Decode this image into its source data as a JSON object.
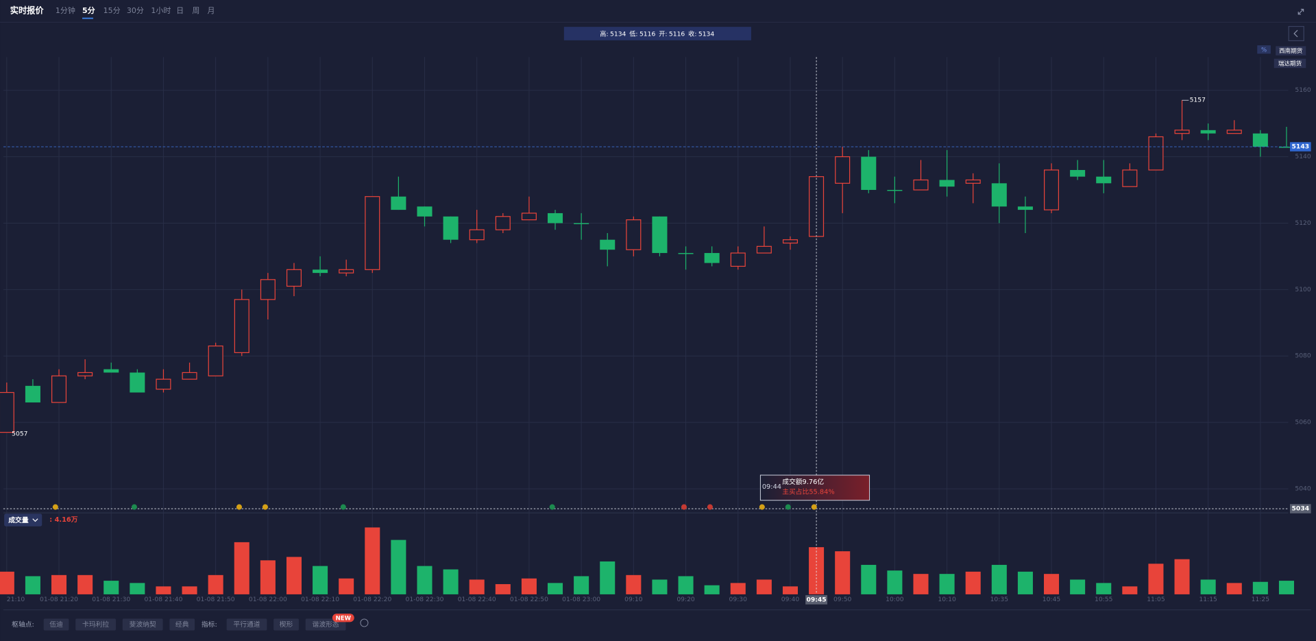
{
  "toolbar": {
    "title": "实时报价",
    "tabs": [
      "1分钟",
      "5分",
      "15分",
      "30分",
      "1小时",
      "日",
      "周",
      "月"
    ]
  },
  "info_labels": [
    "高:",
    "低:",
    "开:",
    "收:"
  ],
  "brokers": [
    "西南期货",
    "瑞达期货"
  ],
  "percent_button": "%",
  "volume_label": "成交量",
  "volume_readout": ": 4.16万",
  "tooltip": {
    "time": "09:44",
    "turnover": "成交额9.76亿",
    "buy_ratio": "主买占比55.84%"
  },
  "bottom_bar": {
    "pivot_label": "枢轴点:",
    "pivot_buttons": [
      "伍迪",
      "卡玛利拉",
      "斐波纳契",
      "经典"
    ],
    "indicator_label": "指标:",
    "indicator_buttons": [
      "平行通道",
      "楔形",
      "谐波形态"
    ],
    "badge": "NEW"
  },
  "chart_data": {
    "type": "candlestick",
    "categories": [
      "21:10",
      null,
      "01-08 21:20",
      null,
      "01-08 21:30",
      null,
      "01-08 21:40",
      null,
      "01-08 21:50",
      null,
      "01-08 22:00",
      null,
      "01-08 22:10",
      null,
      "01-08 22:20",
      null,
      "01-08 22:30",
      null,
      "01-08 22:40",
      null,
      "01-08 22:50",
      null,
      "01-08 23:00",
      null,
      "09:10",
      null,
      "09:20",
      null,
      "09:30",
      null,
      "09:40",
      "09:45",
      "09:50",
      null,
      "10:00",
      null,
      "10:10",
      null,
      "10:35",
      null,
      "10:45",
      null,
      "10:55",
      null,
      "11:05",
      null,
      "11:15",
      null,
      "11:25",
      null
    ],
    "open": [
      5057,
      5071,
      5066,
      5074,
      5076,
      5075,
      5070,
      5073,
      5074,
      5081,
      5097,
      5101,
      5106,
      5105,
      5106,
      5128,
      5125,
      5122,
      5115,
      5118,
      5121,
      5123,
      5120,
      5115,
      5112,
      5122,
      5111,
      5111,
      5107,
      5111,
      5114,
      5116,
      5132,
      5140,
      5130,
      5130,
      5133,
      5132,
      5132,
      5125,
      5124,
      5136,
      5134,
      5131,
      5136,
      5147,
      5148,
      5147,
      5147,
      5143
    ],
    "high": [
      5072,
      5073,
      5076,
      5079,
      5078,
      5076,
      5076,
      5078,
      5084,
      5100,
      5105,
      5108,
      5110,
      5109,
      5128,
      5134,
      5125,
      5122,
      5124,
      5123,
      5128,
      5124,
      5123,
      5117,
      5122,
      5122,
      5113,
      5113,
      5113,
      5119,
      5116,
      5134,
      5143,
      5142,
      5134,
      5139,
      5142,
      5135,
      5138,
      5128,
      5138,
      5139,
      5139,
      5138,
      5147,
      5157,
      5150,
      5151,
      5148,
      5149
    ],
    "low": [
      5057,
      5066,
      5066,
      5073,
      5075,
      5069,
      5069,
      5073,
      5074,
      5080,
      5091,
      5098,
      5104,
      5104,
      5105,
      5124,
      5119,
      5114,
      5114,
      5117,
      5121,
      5118,
      5115,
      5107,
      5110,
      5110,
      5106,
      5107,
      5106,
      5111,
      5112,
      5116,
      5123,
      5129,
      5126,
      5130,
      5128,
      5126,
      5120,
      5117,
      5123,
      5133,
      5129,
      5131,
      5136,
      5145,
      5145,
      5147,
      5140,
      5143
    ],
    "close": [
      5069,
      5066,
      5074,
      5075,
      5075,
      5069,
      5073,
      5075,
      5083,
      5097,
      5103,
      5106,
      5105,
      5106,
      5128,
      5124,
      5122,
      5115,
      5118,
      5122,
      5123,
      5120,
      5120,
      5112,
      5121,
      5111,
      5111,
      5108,
      5111,
      5113,
      5115,
      5134,
      5140,
      5130,
      5130,
      5133,
      5131,
      5133,
      5125,
      5124,
      5136,
      5134,
      5132,
      5136,
      5146,
      5148,
      5147,
      5148,
      5143,
      5143
    ],
    "volume": [
      2.0,
      1.6,
      1.7,
      1.7,
      1.2,
      1.0,
      0.7,
      0.7,
      1.7,
      4.6,
      3.0,
      3.3,
      2.5,
      1.4,
      5.9,
      4.8,
      2.5,
      2.2,
      1.3,
      0.9,
      1.4,
      1.0,
      1.6,
      2.9,
      1.7,
      1.3,
      1.6,
      0.8,
      1.0,
      1.3,
      0.7,
      4.16,
      3.8,
      2.6,
      2.1,
      1.8,
      1.8,
      2.0,
      2.6,
      2.0,
      1.8,
      1.3,
      1.0,
      0.7,
      2.7,
      3.1,
      1.3,
      1.0,
      1.1,
      1.2
    ],
    "up_color": "#e8443a",
    "down_color": "#1db36b",
    "ylim": [
      5033.5,
      5170
    ],
    "yticks": [
      5040,
      5060,
      5080,
      5100,
      5120,
      5140,
      5160
    ],
    "grid": true,
    "crosshair_price": 5034
  }
}
